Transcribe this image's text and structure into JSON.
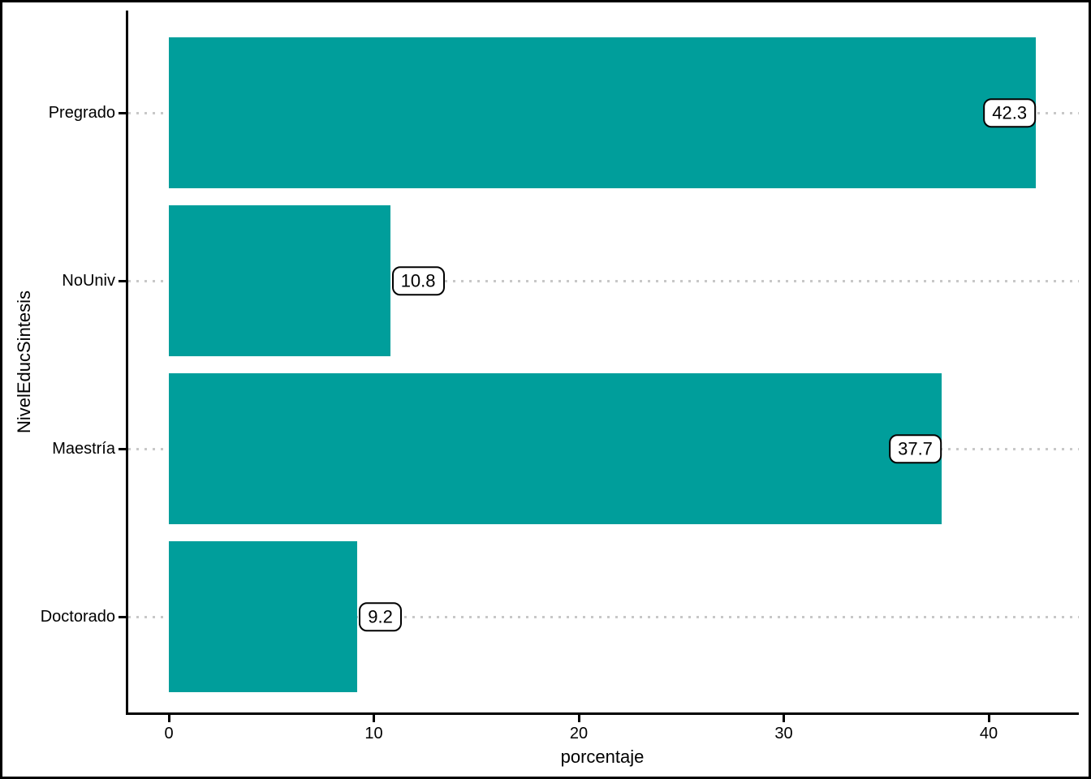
{
  "chart_data": {
    "type": "bar",
    "orientation": "horizontal",
    "title": "",
    "xlabel": "porcentaje",
    "ylabel": "NivelEducSintesis",
    "categories": [
      "Pregrado",
      "NoUniv",
      "Maestría",
      "Doctorado"
    ],
    "values": [
      42.3,
      10.8,
      37.7,
      9.2
    ],
    "bar_labels": [
      "42.3",
      "10.8",
      "37.7",
      "9.2"
    ],
    "label_placement": [
      "inside-end",
      "outside-end",
      "inside-end",
      "outside-end"
    ],
    "x_ticks": [
      0,
      10,
      20,
      30,
      40
    ],
    "xlim": [
      -2.1,
      44.4
    ],
    "legend_position": "none",
    "grid": {
      "style": "dotted",
      "lines": "horizontal-at-each-category"
    },
    "colors": {
      "bar": "#009E9B",
      "gridline": "#C8C8C8",
      "axis": "#000000",
      "text": "#000000",
      "value_label_fill": "#FFFFFF",
      "value_label_border": "#000000",
      "background": "#FFFFFF",
      "figure_border": "#000000"
    }
  }
}
